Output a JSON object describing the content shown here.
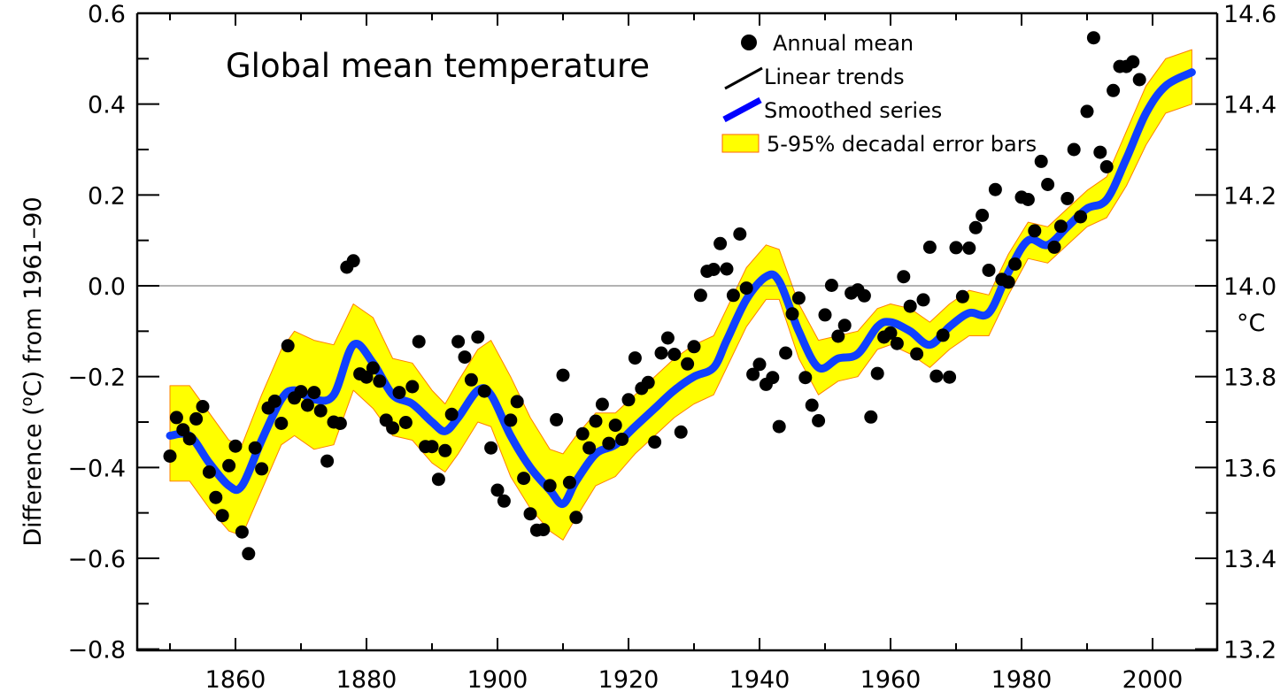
{
  "chart_data": {
    "type": "scatter",
    "title": "Global mean temperature",
    "xlabel": "",
    "ylabel": "Difference (°C) from 1961–90",
    "ylabel_parts": {
      "pre": "Difference (",
      "sup": "o",
      "post": "C) from 1961–90"
    },
    "y2label": "°C",
    "xlim": [
      1845,
      2010
    ],
    "ylim": [
      -0.8,
      0.6
    ],
    "y2lim": [
      13.2,
      14.6
    ],
    "x_ticks": [
      1860,
      1880,
      1900,
      1920,
      1940,
      1960,
      1980,
      2000
    ],
    "x_tick_labels": [
      "1860",
      "1880",
      "1900",
      "1920",
      "1940",
      "1960",
      "1980",
      "2000"
    ],
    "y_ticks": [
      0.6,
      0.4,
      0.2,
      0.0,
      -0.2,
      -0.4,
      -0.6,
      -0.8
    ],
    "y_tick_labels": [
      "0.6",
      "0.4",
      "0.2",
      "0.0",
      "−0.2",
      "−0.4",
      "−0.6",
      "−0.8"
    ],
    "y2_tick_labels": [
      "14.6",
      "14.4",
      "14.2",
      "14.0",
      "13.8",
      "13.6",
      "13.4",
      "13.2"
    ],
    "zero_line": 0.0,
    "legend": {
      "position": "top-right",
      "entries": [
        {
          "label": "Annual mean",
          "marker": "dot",
          "color": "#000000"
        },
        {
          "label": "Linear trends",
          "marker": "line",
          "color": "#000000"
        },
        {
          "label": "Smoothed series",
          "marker": "thick-line",
          "color": "#0000ff"
        },
        {
          "label": "5-95% decadal error bars",
          "marker": "box",
          "color": "#ffff00",
          "edge": "#ff6600"
        }
      ]
    },
    "colors": {
      "points": "#000000",
      "smooth": "#1040ff",
      "band": "#ffff00",
      "band_edge": "#ff8000",
      "axis": "#000000",
      "zero": "#666666"
    },
    "series": [
      {
        "name": "Annual mean",
        "x_start": 1850,
        "values": [
          -0.375,
          -0.29,
          -0.317,
          -0.337,
          -0.293,
          -0.266,
          -0.41,
          -0.466,
          -0.506,
          -0.396,
          -0.353,
          -0.542,
          -0.59,
          -0.357,
          -0.403,
          -0.269,
          -0.254,
          -0.303,
          -0.132,
          -0.247,
          -0.233,
          -0.263,
          -0.235,
          -0.275,
          -0.386,
          -0.3,
          -0.303,
          0.041,
          0.055,
          -0.194,
          -0.201,
          -0.181,
          -0.21,
          -0.296,
          -0.313,
          -0.235,
          -0.301,
          -0.222,
          -0.123,
          -0.354,
          -0.354,
          -0.426,
          -0.363,
          -0.283,
          -0.123,
          -0.157,
          -0.207,
          -0.113,
          -0.232,
          -0.357,
          -0.45,
          -0.474,
          -0.296,
          -0.255,
          -0.424,
          -0.502,
          -0.538,
          -0.537,
          -0.44,
          -0.295,
          -0.197,
          -0.433,
          -0.51,
          -0.326,
          -0.357,
          -0.298,
          -0.261,
          -0.347,
          -0.307,
          -0.338,
          -0.251,
          -0.159,
          -0.226,
          -0.213,
          -0.344,
          -0.148,
          -0.115,
          -0.151,
          -0.322,
          -0.172,
          -0.134,
          -0.021,
          0.032,
          0.036,
          0.093,
          0.037,
          -0.021,
          0.114,
          -0.005,
          -0.195,
          -0.173,
          -0.217,
          -0.202,
          -0.31,
          -0.148,
          -0.062,
          -0.027,
          -0.202,
          -0.263,
          -0.297,
          -0.064,
          0.001,
          -0.111,
          -0.087,
          -0.016,
          -0.009,
          -0.022,
          -0.289,
          -0.193,
          -0.113,
          -0.104,
          -0.127,
          0.02,
          -0.045,
          -0.15,
          -0.031,
          0.085,
          -0.199,
          -0.109,
          -0.201,
          0.084,
          -0.024,
          0.083,
          0.128,
          0.155,
          0.034,
          0.212,
          0.014,
          0.008,
          0.048,
          0.195,
          0.19,
          0.121,
          0.274,
          0.223,
          0.085,
          0.131,
          0.192,
          0.3,
          0.152,
          0.384,
          0.546,
          0.294,
          0.262,
          0.43,
          0.483,
          0.483,
          0.493,
          0.454
        ]
      },
      {
        "name": "Smoothed series",
        "x": [
          1850,
          1853,
          1856,
          1859,
          1861,
          1864,
          1867,
          1869,
          1872,
          1875,
          1878,
          1881,
          1884,
          1887,
          1890,
          1892,
          1894,
          1897,
          1899,
          1902,
          1905,
          1908,
          1910,
          1912,
          1915,
          1918,
          1921,
          1924,
          1927,
          1930,
          1933,
          1935,
          1938,
          1941,
          1943,
          1946,
          1949,
          1952,
          1955,
          1958,
          1960,
          1963,
          1966,
          1969,
          1972,
          1975,
          1978,
          1981,
          1984,
          1987,
          1990,
          1993,
          1996,
          1999,
          2002,
          2006
        ],
        "values": [
          -0.33,
          -0.33,
          -0.39,
          -0.44,
          -0.44,
          -0.34,
          -0.25,
          -0.23,
          -0.25,
          -0.24,
          -0.13,
          -0.17,
          -0.24,
          -0.26,
          -0.3,
          -0.32,
          -0.29,
          -0.23,
          -0.24,
          -0.33,
          -0.4,
          -0.45,
          -0.48,
          -0.43,
          -0.37,
          -0.35,
          -0.31,
          -0.27,
          -0.23,
          -0.2,
          -0.18,
          -0.12,
          -0.03,
          0.02,
          0.01,
          -0.1,
          -0.18,
          -0.16,
          -0.15,
          -0.09,
          -0.08,
          -0.1,
          -0.13,
          -0.09,
          -0.06,
          -0.06,
          0.03,
          0.1,
          0.09,
          0.13,
          0.17,
          0.19,
          0.28,
          0.38,
          0.44,
          0.47
        ]
      },
      {
        "name": "5-95% decadal error bars",
        "x": [
          1850,
          1853,
          1856,
          1859,
          1861,
          1864,
          1867,
          1869,
          1872,
          1875,
          1878,
          1881,
          1884,
          1887,
          1890,
          1892,
          1894,
          1897,
          1899,
          1902,
          1905,
          1908,
          1910,
          1912,
          1915,
          1918,
          1921,
          1924,
          1927,
          1930,
          1933,
          1935,
          1938,
          1941,
          1943,
          1946,
          1949,
          1952,
          1955,
          1958,
          1960,
          1963,
          1966,
          1969,
          1972,
          1975,
          1978,
          1981,
          1984,
          1987,
          1990,
          1993,
          1996,
          1999,
          2002,
          2006
        ],
        "upper": [
          -0.22,
          -0.22,
          -0.28,
          -0.34,
          -0.35,
          -0.24,
          -0.14,
          -0.1,
          -0.12,
          -0.13,
          -0.04,
          -0.07,
          -0.16,
          -0.17,
          -0.23,
          -0.26,
          -0.21,
          -0.14,
          -0.12,
          -0.2,
          -0.29,
          -0.36,
          -0.37,
          -0.33,
          -0.28,
          -0.28,
          -0.24,
          -0.2,
          -0.16,
          -0.13,
          -0.11,
          -0.05,
          0.04,
          0.09,
          0.08,
          -0.04,
          -0.12,
          -0.11,
          -0.1,
          -0.05,
          -0.04,
          -0.05,
          -0.08,
          -0.04,
          -0.01,
          -0.02,
          0.07,
          0.14,
          0.13,
          0.17,
          0.21,
          0.24,
          0.34,
          0.44,
          0.5,
          0.52
        ],
        "lower": [
          -0.43,
          -0.43,
          -0.49,
          -0.54,
          -0.55,
          -0.45,
          -0.35,
          -0.33,
          -0.36,
          -0.35,
          -0.23,
          -0.27,
          -0.33,
          -0.34,
          -0.39,
          -0.41,
          -0.37,
          -0.3,
          -0.31,
          -0.42,
          -0.49,
          -0.54,
          -0.56,
          -0.51,
          -0.44,
          -0.42,
          -0.37,
          -0.33,
          -0.29,
          -0.26,
          -0.24,
          -0.18,
          -0.09,
          -0.03,
          -0.03,
          -0.16,
          -0.24,
          -0.21,
          -0.2,
          -0.14,
          -0.13,
          -0.15,
          -0.18,
          -0.14,
          -0.11,
          -0.11,
          -0.02,
          0.06,
          0.05,
          0.09,
          0.13,
          0.15,
          0.22,
          0.31,
          0.38,
          0.4
        ]
      }
    ]
  }
}
